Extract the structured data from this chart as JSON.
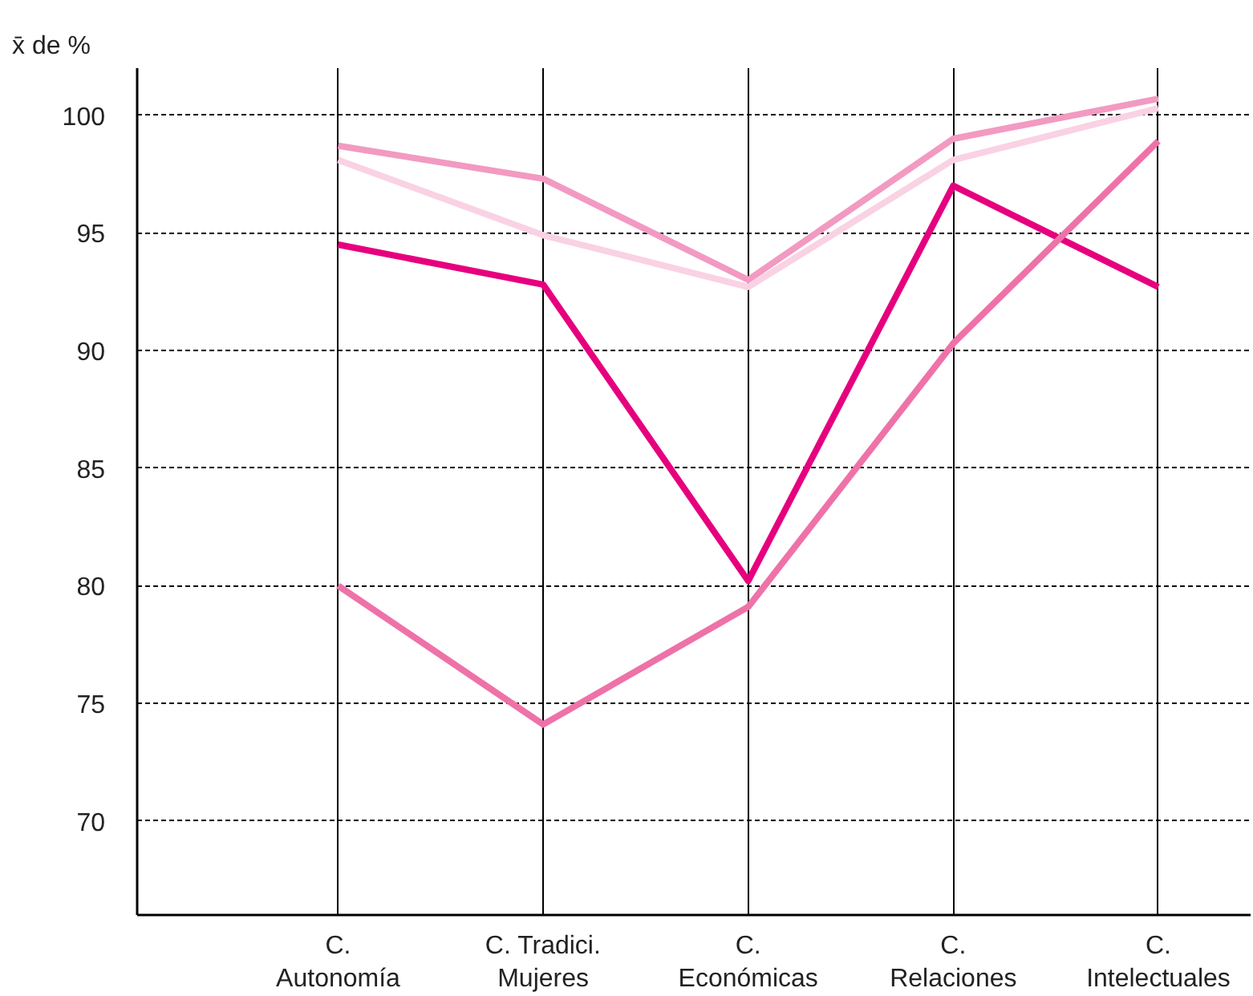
{
  "chart_data": {
    "type": "line",
    "ylabel": "x̄ de %",
    "categories": [
      "C.\nAutonomía",
      "C. Tradici.\nMujeres",
      "C.\nEconómicas",
      "C.\nRelaciones",
      "C.\nIntelectuales"
    ],
    "series": [
      {
        "color": "#e6007e",
        "values": [
          94.5,
          92.8,
          80.2,
          97.0,
          92.7
        ]
      },
      {
        "color": "#ee72a8",
        "values": [
          80.0,
          74.1,
          79.1,
          90.3,
          98.9
        ]
      },
      {
        "color": "#f29ac2",
        "values": [
          98.7,
          97.3,
          93.0,
          99.0,
          100.7
        ]
      },
      {
        "color": "#f9d2e3",
        "values": [
          98.1,
          94.9,
          92.7,
          98.1,
          100.3
        ]
      }
    ],
    "ylim": [
      66,
      102
    ],
    "yticks": [
      70,
      75,
      80,
      85,
      90,
      95,
      100
    ],
    "grid": true,
    "marker": "none",
    "line_style": "solid"
  }
}
